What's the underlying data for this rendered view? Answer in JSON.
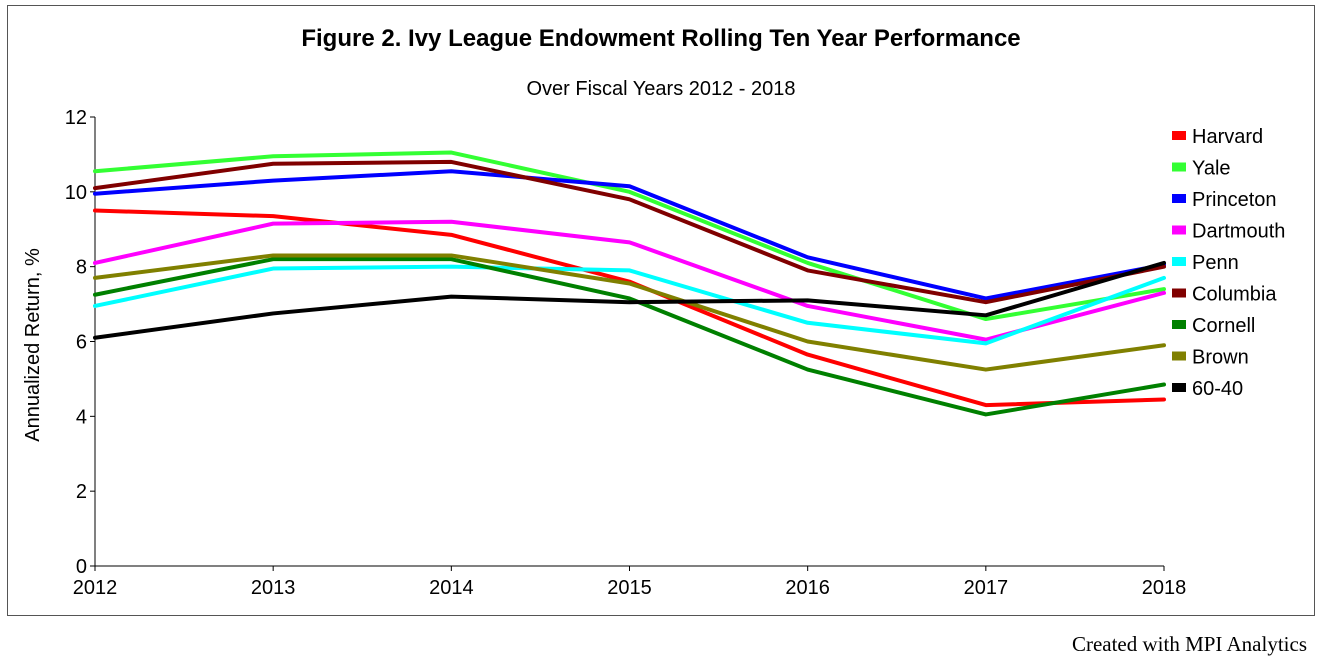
{
  "chart_data": {
    "type": "line",
    "title": "Figure 2. Ivy League Endowment Rolling Ten Year Performance",
    "subtitle": "Over Fiscal Years 2012 - 2018",
    "xlabel": "",
    "ylabel": "Annualized Return, %",
    "x": [
      2012,
      2013,
      2014,
      2015,
      2016,
      2017,
      2018
    ],
    "ylim": [
      0,
      12
    ],
    "yticks": [
      0,
      2,
      4,
      6,
      8,
      10,
      12
    ],
    "grid": false,
    "legend_position": "right",
    "series": [
      {
        "name": "Harvard",
        "color": "#ff0000",
        "values": [
          9.5,
          9.35,
          8.85,
          7.6,
          5.65,
          4.3,
          4.45
        ]
      },
      {
        "name": "Yale",
        "color": "#33ff33",
        "values": [
          10.55,
          10.95,
          11.05,
          10.0,
          8.1,
          6.6,
          7.4
        ]
      },
      {
        "name": "Princeton",
        "color": "#0000ff",
        "values": [
          9.95,
          10.3,
          10.55,
          10.15,
          8.25,
          7.15,
          8.05
        ]
      },
      {
        "name": "Dartmouth",
        "color": "#ff00ff",
        "values": [
          8.1,
          9.15,
          9.2,
          8.65,
          6.95,
          6.05,
          7.3
        ]
      },
      {
        "name": "Penn",
        "color": "#00ffff",
        "values": [
          6.95,
          7.95,
          8.0,
          7.9,
          6.5,
          5.95,
          7.7
        ]
      },
      {
        "name": "Columbia",
        "color": "#800000",
        "values": [
          10.1,
          10.75,
          10.8,
          9.8,
          7.9,
          7.05,
          8.0
        ]
      },
      {
        "name": "Cornell",
        "color": "#008000",
        "values": [
          7.25,
          8.2,
          8.2,
          7.15,
          5.25,
          4.05,
          4.85
        ]
      },
      {
        "name": "Brown",
        "color": "#808000",
        "values": [
          7.7,
          8.3,
          8.3,
          7.55,
          6.0,
          5.25,
          5.9
        ]
      },
      {
        "name": "60-40",
        "color": "#000000",
        "values": [
          6.1,
          6.75,
          7.2,
          7.05,
          7.1,
          6.7,
          8.1
        ]
      }
    ]
  },
  "footer": {
    "credit": "Created with MPI Analytics"
  }
}
